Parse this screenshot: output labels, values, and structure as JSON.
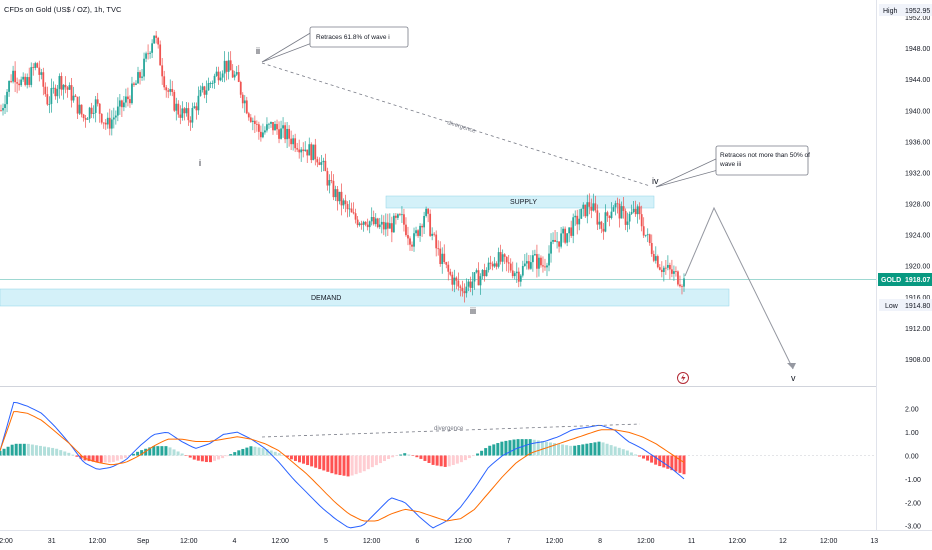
{
  "header": {
    "symbol_title": "CFDs on Gold (US$ / OZ), 1h, TVC"
  },
  "price_axis": {
    "ticks": [
      "1952.00",
      "1948.00",
      "1944.00",
      "1940.00",
      "1936.00",
      "1932.00",
      "1928.00",
      "1924.00",
      "1920.00",
      "1916.00",
      "1912.00",
      "1908.00"
    ],
    "high_label": "High",
    "high_value": "1952.95",
    "low_label": "Low",
    "low_value": "1914.80",
    "symbol_tag": "GOLD",
    "last_price": "1918.07"
  },
  "macd_axis": {
    "ticks": [
      "2.00",
      "1.00",
      "0.00",
      "-1.00",
      "-2.00",
      "-3.00"
    ]
  },
  "time_axis": {
    "ticks": [
      "2:00",
      "31",
      "12:00",
      "Sep",
      "12:00",
      "4",
      "12:00",
      "5",
      "12:00",
      "6",
      "12:00",
      "7",
      "12:00",
      "8",
      "12:00",
      "11",
      "12:00",
      "12",
      "12:00",
      "13"
    ]
  },
  "annotations": {
    "wave_i": "i",
    "wave_ii": "ii",
    "wave_iii": "iii",
    "wave_iv": "iv",
    "wave_v": "v",
    "callout_ii": "Retraces 61.8% of wave i",
    "callout_iv_line1": "Retraces not more than 50% of",
    "callout_iv_line2": "wave iii",
    "divergence_price": "divergence",
    "divergence_macd": "divergence",
    "supply_zone": "SUPPLY",
    "demand_zone": "DEMAND"
  },
  "colors": {
    "bull": "#26a69a",
    "bear": "#ef5350",
    "zone_fill": "#d4f1f9",
    "zone_border": "#8fd3e8",
    "macd_line": "#2962ff",
    "signal_line": "#ff6d00",
    "hist_pos_strong": "#26a69a",
    "hist_pos_weak": "#b2dfdb",
    "hist_neg_strong": "#ff5252",
    "hist_neg_weak": "#ffcdd2",
    "last_price_tag": "#089981"
  },
  "chart_data": [
    {
      "type": "candlestick",
      "title": "CFDs on Gold (US$ / OZ), 1h, TVC",
      "ylim": [
        1905,
        1953.5
      ],
      "swing_points": [
        {
          "label": "i",
          "price": 1937.5
        },
        {
          "label": "ii",
          "price": 1946.0
        },
        {
          "label": "iii",
          "price": 1914.8
        },
        {
          "label": "iv",
          "price": 1929.5
        },
        {
          "label": "v",
          "price": 1906.0
        }
      ],
      "close_path": [
        1940,
        1945,
        1943,
        1946,
        1941,
        1944,
        1942,
        1939,
        1941,
        1938,
        1940,
        1942,
        1945,
        1950,
        1943,
        1940,
        1939,
        1942,
        1944,
        1946,
        1944,
        1940,
        1937,
        1938,
        1937,
        1936,
        1935,
        1934,
        1930,
        1928,
        1926,
        1926,
        1925,
        1925,
        1926,
        1923,
        1927,
        1922,
        1919,
        1917,
        1918,
        1919,
        1921,
        1920,
        1919,
        1921,
        1920,
        1923,
        1924,
        1926,
        1928,
        1925,
        1928,
        1926,
        1927,
        1923,
        1920,
        1919,
        1918
      ],
      "supply_zone": [
        1927.5,
        1929.0
      ],
      "demand_zone": [
        1914.8,
        1916.6
      ],
      "projection": [
        1929.5,
        1906.0
      ]
    },
    {
      "type": "line",
      "title": "MACD",
      "ylim": [
        -3.1,
        2.5
      ],
      "macd": [
        0.2,
        2.3,
        2.1,
        1.8,
        1.2,
        0.5,
        -0.3,
        -0.6,
        -0.5,
        -0.2,
        0.4,
        0.9,
        1.0,
        0.6,
        0.3,
        0.5,
        0.9,
        1.0,
        0.7,
        0.3,
        -0.3,
        -1.0,
        -1.6,
        -2.2,
        -2.7,
        -3.1,
        -3.0,
        -2.4,
        -1.8,
        -2.0,
        -2.6,
        -3.1,
        -2.8,
        -2.2,
        -1.4,
        -0.5,
        0.0,
        0.3,
        0.5,
        0.6,
        0.8,
        1.1,
        1.2,
        1.3,
        1.1,
        0.6,
        0.3,
        -0.1,
        -0.5,
        -1.0
      ],
      "signal": [
        0.2,
        1.9,
        1.8,
        1.5,
        1.0,
        0.5,
        -0.1,
        -0.3,
        -0.4,
        -0.3,
        0.0,
        0.4,
        0.7,
        0.7,
        0.6,
        0.6,
        0.7,
        0.8,
        0.7,
        0.5,
        0.2,
        -0.3,
        -0.8,
        -1.4,
        -2.0,
        -2.5,
        -2.8,
        -2.8,
        -2.5,
        -2.3,
        -2.4,
        -2.6,
        -2.8,
        -2.7,
        -2.3,
        -1.6,
        -0.9,
        -0.3,
        0.1,
        0.3,
        0.5,
        0.7,
        0.9,
        1.1,
        1.1,
        1.0,
        0.8,
        0.5,
        0.1,
        -0.3
      ],
      "histogram": [
        0.2,
        0.5,
        0.5,
        0.4,
        0.3,
        0.1,
        -0.2,
        -0.3,
        -0.3,
        -0.1,
        0.2,
        0.4,
        0.4,
        0.1,
        -0.2,
        -0.3,
        -0.1,
        0.2,
        0.4,
        0.3,
        0.1,
        -0.2,
        -0.4,
        -0.6,
        -0.8,
        -0.9,
        -0.7,
        -0.4,
        -0.1,
        0.1,
        -0.1,
        -0.4,
        -0.5,
        -0.3,
        0.0,
        0.4,
        0.6,
        0.7,
        0.7,
        0.6,
        0.5,
        0.4,
        0.5,
        0.6,
        0.4,
        0.2,
        -0.1,
        -0.4,
        -0.6,
        -0.8
      ]
    }
  ]
}
